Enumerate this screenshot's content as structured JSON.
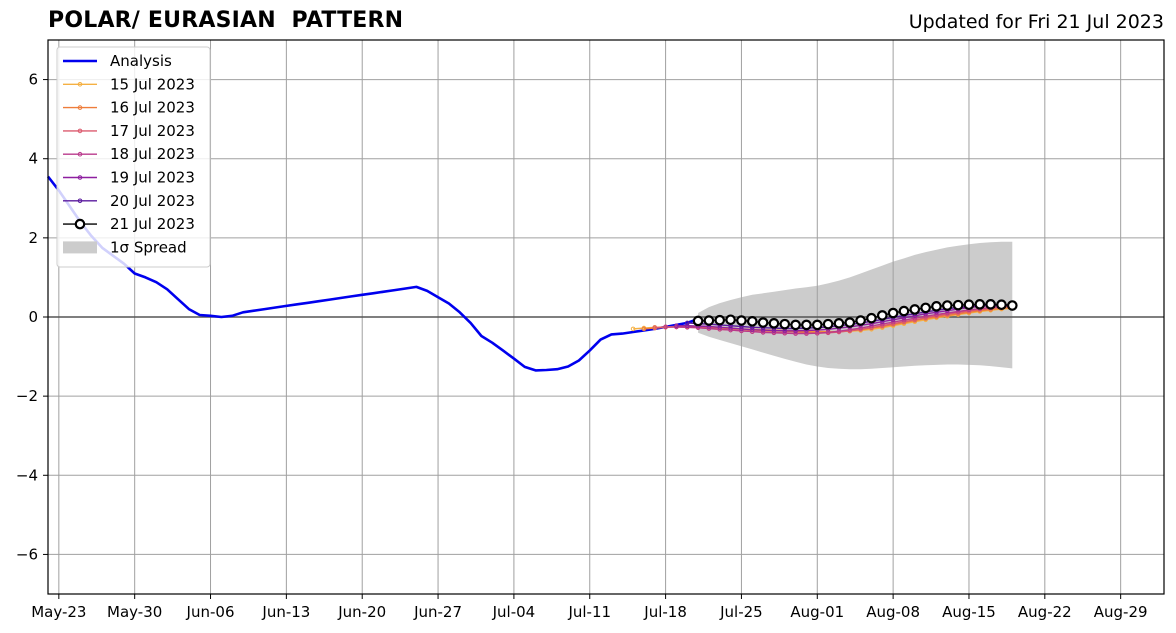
{
  "header": {
    "title": "POLAR/ EURASIAN  PATTERN",
    "updated": "Updated for Fri 21 Jul 2023"
  },
  "chart_data": {
    "type": "line",
    "title": "POLAR/ EURASIAN  PATTERN",
    "xlabel": "",
    "ylabel": "",
    "x_start_date": "2023-05-22",
    "xlim": [
      "2023-05-22",
      "2023-09-02"
    ],
    "ylim": [
      -7,
      7
    ],
    "x_ticks": [
      {
        "date": "2023-05-23",
        "label": "May-23"
      },
      {
        "date": "2023-05-30",
        "label": "May-30"
      },
      {
        "date": "2023-06-06",
        "label": "Jun-06"
      },
      {
        "date": "2023-06-13",
        "label": "Jun-13"
      },
      {
        "date": "2023-06-20",
        "label": "Jun-20"
      },
      {
        "date": "2023-06-27",
        "label": "Jun-27"
      },
      {
        "date": "2023-07-04",
        "label": "Jul-04"
      },
      {
        "date": "2023-07-11",
        "label": "Jul-11"
      },
      {
        "date": "2023-07-18",
        "label": "Jul-18"
      },
      {
        "date": "2023-07-25",
        "label": "Jul-25"
      },
      {
        "date": "2023-08-01",
        "label": "Aug-01"
      },
      {
        "date": "2023-08-08",
        "label": "Aug-08"
      },
      {
        "date": "2023-08-15",
        "label": "Aug-15"
      },
      {
        "date": "2023-08-22",
        "label": "Aug-22"
      },
      {
        "date": "2023-08-29",
        "label": "Aug-29"
      }
    ],
    "y_ticks": [
      {
        "value": -6,
        "label": "−6"
      },
      {
        "value": -4,
        "label": "−4"
      },
      {
        "value": -2,
        "label": "−2"
      },
      {
        "value": 0,
        "label": "0"
      },
      {
        "value": 2,
        "label": "2"
      },
      {
        "value": 4,
        "label": "4"
      },
      {
        "value": 6,
        "label": "6"
      }
    ],
    "grid": true,
    "legend_position": "top-left",
    "legend": [
      "Analysis",
      "15 Jul 2023",
      "16 Jul 2023",
      "17 Jul 2023",
      "18 Jul 2023",
      "19 Jul 2023",
      "20 Jul 2023",
      "21 Jul 2023",
      "1σ Spread"
    ],
    "series": [
      {
        "name": "Analysis",
        "color": "#0000ee",
        "marker": "none",
        "x": [
          0,
          1,
          2,
          3,
          4,
          5,
          6,
          7,
          8,
          9,
          10,
          11,
          12,
          13,
          14,
          15,
          16,
          17,
          18,
          19,
          20,
          21,
          22,
          23,
          24,
          25,
          26,
          27,
          28,
          29,
          30,
          31,
          32,
          33,
          34,
          35,
          36,
          37,
          38,
          39,
          40,
          41,
          42,
          43,
          44,
          45,
          46,
          47,
          48,
          49,
          50,
          51,
          52,
          53,
          54,
          55,
          56,
          57,
          58,
          59,
          60
        ],
        "y": [
          3.55,
          3.2,
          2.8,
          2.4,
          2.05,
          1.75,
          1.55,
          1.35,
          1.1,
          1.0,
          0.88,
          0.7,
          0.45,
          0.2,
          0.05,
          0.03,
          0.0,
          0.03,
          0.12,
          0.16,
          0.2,
          0.24,
          0.28,
          0.32,
          0.36,
          0.4,
          0.44,
          0.48,
          0.52,
          0.56,
          0.6,
          0.64,
          0.68,
          0.72,
          0.76,
          0.66,
          0.5,
          0.34,
          0.12,
          -0.15,
          -0.48,
          -0.65,
          -0.85,
          -1.05,
          -1.26,
          -1.35,
          -1.34,
          -1.32,
          -1.25,
          -1.1,
          -0.85,
          -0.57,
          -0.44,
          -0.42,
          -0.38,
          -0.34,
          -0.3,
          -0.25,
          -0.2,
          -0.15,
          -0.05
        ]
      },
      {
        "name": "15 Jul 2023",
        "color": "#f5b042",
        "marker": "small",
        "x": [
          54,
          55,
          56,
          57,
          58,
          59,
          60,
          61,
          62,
          63,
          64,
          65,
          66,
          67,
          68,
          69,
          70,
          71,
          72,
          73,
          74,
          75,
          76,
          77,
          78,
          79,
          80,
          81,
          82,
          83,
          84,
          85,
          86,
          87,
          88,
          89
        ],
        "y": [
          -0.3,
          -0.28,
          -0.26,
          -0.25,
          -0.24,
          -0.24,
          -0.25,
          -0.26,
          -0.27,
          -0.28,
          -0.3,
          -0.31,
          -0.32,
          -0.33,
          -0.34,
          -0.35,
          -0.36,
          -0.37,
          -0.37,
          -0.37,
          -0.36,
          -0.34,
          -0.31,
          -0.27,
          -0.22,
          -0.17,
          -0.12,
          -0.07,
          -0.02,
          0.02,
          0.06,
          0.1,
          0.14,
          0.17,
          0.2,
          0.22
        ]
      },
      {
        "name": "16 Jul 2023",
        "color": "#ee7d3b",
        "marker": "small",
        "x": [
          55,
          56,
          57,
          58,
          59,
          60,
          61,
          62,
          63,
          64,
          65,
          66,
          67,
          68,
          69,
          70,
          71,
          72,
          73,
          74,
          75,
          76,
          77,
          78,
          79,
          80,
          81,
          82,
          83,
          84,
          85,
          86,
          87,
          88,
          89
        ],
        "y": [
          -0.3,
          -0.28,
          -0.26,
          -0.25,
          -0.25,
          -0.25,
          -0.26,
          -0.28,
          -0.29,
          -0.31,
          -0.33,
          -0.34,
          -0.35,
          -0.36,
          -0.37,
          -0.38,
          -0.38,
          -0.38,
          -0.37,
          -0.35,
          -0.32,
          -0.28,
          -0.24,
          -0.19,
          -0.14,
          -0.09,
          -0.04,
          0.0,
          0.04,
          0.08,
          0.12,
          0.16,
          0.19,
          0.22,
          0.24
        ]
      },
      {
        "name": "17 Jul 2023",
        "color": "#dc5a6e",
        "marker": "small",
        "x": [
          56,
          57,
          58,
          59,
          60,
          61,
          62,
          63,
          64,
          65,
          66,
          67,
          68,
          69,
          70,
          71,
          72,
          73,
          74,
          75,
          76,
          77,
          78,
          79,
          80,
          81,
          82,
          83,
          84,
          85,
          86,
          87,
          88,
          89
        ],
        "y": [
          -0.27,
          -0.25,
          -0.25,
          -0.26,
          -0.27,
          -0.29,
          -0.31,
          -0.33,
          -0.35,
          -0.37,
          -0.38,
          -0.39,
          -0.4,
          -0.41,
          -0.41,
          -0.41,
          -0.4,
          -0.38,
          -0.35,
          -0.31,
          -0.27,
          -0.22,
          -0.17,
          -0.12,
          -0.07,
          -0.02,
          0.03,
          0.07,
          0.11,
          0.15,
          0.19,
          0.22,
          0.25,
          0.27
        ]
      },
      {
        "name": "18 Jul 2023",
        "color": "#b93a8c",
        "marker": "small",
        "x": [
          57,
          58,
          59,
          60,
          61,
          62,
          63,
          64,
          65,
          66,
          67,
          68,
          69,
          70,
          71,
          72,
          73,
          74,
          75,
          76,
          77,
          78,
          79,
          80,
          81,
          82,
          83,
          84,
          85,
          86,
          87,
          88,
          89
        ],
        "y": [
          -0.25,
          -0.25,
          -0.26,
          -0.27,
          -0.29,
          -0.31,
          -0.33,
          -0.35,
          -0.37,
          -0.39,
          -0.4,
          -0.41,
          -0.42,
          -0.42,
          -0.41,
          -0.39,
          -0.36,
          -0.32,
          -0.28,
          -0.23,
          -0.18,
          -0.13,
          -0.08,
          -0.03,
          0.02,
          0.06,
          0.1,
          0.14,
          0.18,
          0.21,
          0.24,
          0.26,
          0.28
        ]
      },
      {
        "name": "19 Jul 2023",
        "color": "#8e1fa0",
        "marker": "small",
        "x": [
          58,
          59,
          60,
          61,
          62,
          63,
          64,
          65,
          66,
          67,
          68,
          69,
          70,
          71,
          72,
          73,
          74,
          75,
          76,
          77,
          78,
          79,
          80,
          81,
          82,
          83,
          84,
          85,
          86,
          87,
          88,
          89
        ],
        "y": [
          -0.22,
          -0.22,
          -0.23,
          -0.24,
          -0.26,
          -0.28,
          -0.3,
          -0.32,
          -0.33,
          -0.34,
          -0.35,
          -0.35,
          -0.34,
          -0.33,
          -0.31,
          -0.28,
          -0.25,
          -0.21,
          -0.17,
          -0.12,
          -0.07,
          -0.02,
          0.03,
          0.08,
          0.12,
          0.16,
          0.2,
          0.24,
          0.27,
          0.29,
          0.3,
          0.3
        ]
      },
      {
        "name": "20 Jul 2023",
        "color": "#5a1a9e",
        "marker": "small",
        "x": [
          59,
          60,
          61,
          62,
          63,
          64,
          65,
          66,
          67,
          68,
          69,
          70,
          71,
          72,
          73,
          74,
          75,
          76,
          77,
          78,
          79,
          80,
          81,
          82,
          83,
          84,
          85,
          86,
          87,
          88,
          89
        ],
        "y": [
          -0.15,
          -0.17,
          -0.18,
          -0.2,
          -0.22,
          -0.24,
          -0.26,
          -0.27,
          -0.28,
          -0.29,
          -0.29,
          -0.28,
          -0.27,
          -0.25,
          -0.22,
          -0.19,
          -0.15,
          -0.11,
          -0.06,
          -0.01,
          0.04,
          0.08,
          0.13,
          0.17,
          0.21,
          0.24,
          0.27,
          0.29,
          0.3,
          0.31,
          0.31
        ]
      },
      {
        "name": "21 Jul 2023",
        "color": "#000000",
        "marker": "circle",
        "x": [
          60,
          61,
          62,
          63,
          64,
          65,
          66,
          67,
          68,
          69,
          70,
          71,
          72,
          73,
          74,
          75,
          76,
          77,
          78,
          79,
          80,
          81,
          82,
          83,
          84,
          85,
          86,
          87,
          88,
          89
        ],
        "y": [
          -0.1,
          -0.09,
          -0.08,
          -0.07,
          -0.09,
          -0.11,
          -0.14,
          -0.16,
          -0.18,
          -0.2,
          -0.2,
          -0.2,
          -0.18,
          -0.16,
          -0.14,
          -0.09,
          -0.03,
          0.04,
          0.1,
          0.15,
          0.19,
          0.23,
          0.27,
          0.29,
          0.3,
          0.31,
          0.32,
          0.32,
          0.31,
          0.29
        ]
      }
    ],
    "spread": {
      "name": "1σ Spread",
      "color": "#cccccc",
      "x": [
        60,
        61,
        62,
        63,
        64,
        65,
        66,
        67,
        68,
        69,
        70,
        71,
        72,
        73,
        74,
        75,
        76,
        77,
        78,
        79,
        80,
        81,
        82,
        83,
        84,
        85,
        86,
        87,
        88,
        89
      ],
      "upper": [
        0.1,
        0.25,
        0.35,
        0.43,
        0.5,
        0.56,
        0.6,
        0.64,
        0.68,
        0.72,
        0.75,
        0.79,
        0.85,
        0.92,
        1.0,
        1.1,
        1.2,
        1.3,
        1.4,
        1.48,
        1.57,
        1.64,
        1.7,
        1.76,
        1.8,
        1.84,
        1.87,
        1.89,
        1.9,
        1.9
      ],
      "lower": [
        -0.4,
        -0.5,
        -0.58,
        -0.66,
        -0.74,
        -0.82,
        -0.9,
        -0.98,
        -1.06,
        -1.13,
        -1.2,
        -1.25,
        -1.29,
        -1.31,
        -1.32,
        -1.32,
        -1.31,
        -1.29,
        -1.27,
        -1.25,
        -1.23,
        -1.22,
        -1.21,
        -1.2,
        -1.2,
        -1.21,
        -1.22,
        -1.24,
        -1.27,
        -1.3
      ]
    }
  }
}
